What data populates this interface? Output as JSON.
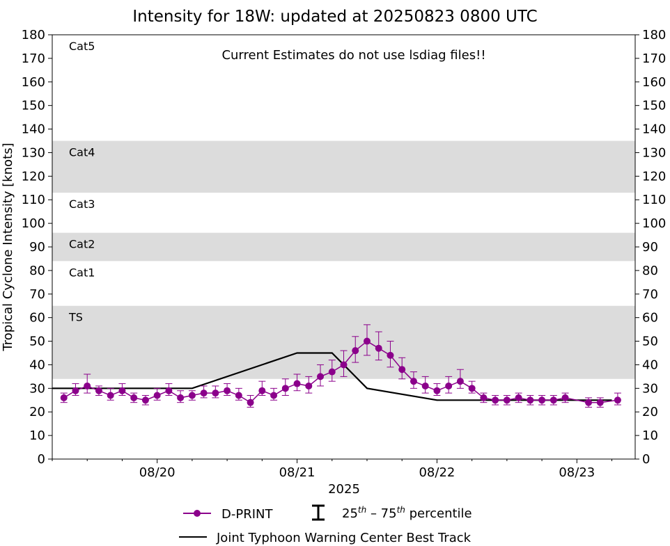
{
  "chart_data": {
    "type": "scatter",
    "title": "Intensity for 18W: updated at 20250823 0800 UTC",
    "ylabel": "Tropical Cyclone Intensity [knots]",
    "xlabel": "2025",
    "annotation": "Current Estimates do not use lsdiag files!!",
    "ylim": [
      0,
      180
    ],
    "xlim": [
      "2025-08-19 06:00",
      "2025-08-23 10:00"
    ],
    "y_ticks": [
      "0",
      "10",
      "20",
      "30",
      "40",
      "50",
      "60",
      "70",
      "80",
      "90",
      "100",
      "110",
      "120",
      "130",
      "140",
      "150",
      "160",
      "170",
      "180"
    ],
    "x_ticks": [
      "08/20",
      "08/21",
      "08/22",
      "08/23"
    ],
    "category_bands": [
      {
        "label": "Cat5",
        "from": 137,
        "to": 180,
        "shaded": false
      },
      {
        "label": "Cat4",
        "from": 113,
        "to": 135,
        "shaded": true
      },
      {
        "label": "Cat3",
        "from": 96,
        "to": 113,
        "shaded": false
      },
      {
        "label": "Cat2",
        "from": 84,
        "to": 96,
        "shaded": true
      },
      {
        "label": "Cat1",
        "from": 64,
        "to": 84,
        "shaded": false
      },
      {
        "label": "TS",
        "from": 34,
        "to": 65,
        "shaded": true
      }
    ],
    "colors": {
      "dprint": "#8b008b",
      "best_track": "#000000",
      "band": "#dcdcdc"
    },
    "legend": {
      "placement": "bottom",
      "dprint": "D-PRINT",
      "percentile_pre": "25",
      "percentile_mid": "th",
      "percentile_dash": " – 75",
      "percentile_sup2": "th",
      "percentile_post": " percentile",
      "best_track": "Joint Typhoon Warning Center Best Track"
    },
    "series": [
      {
        "name": "Joint Typhoon Warning Center Best Track",
        "x": [
          "2025-08-19 06:00",
          "2025-08-20 06:00",
          "2025-08-21 00:00",
          "2025-08-21 06:00",
          "2025-08-21 12:00",
          "2025-08-22 00:00",
          "2025-08-23 06:00"
        ],
        "y": [
          30,
          30,
          45,
          45,
          30,
          25,
          25
        ]
      },
      {
        "name": "D-PRINT",
        "x": [
          "2025-08-19 08:00",
          "2025-08-19 10:00",
          "2025-08-19 12:00",
          "2025-08-19 14:00",
          "2025-08-19 16:00",
          "2025-08-19 18:00",
          "2025-08-19 20:00",
          "2025-08-19 22:00",
          "2025-08-20 00:00",
          "2025-08-20 02:00",
          "2025-08-20 04:00",
          "2025-08-20 06:00",
          "2025-08-20 08:00",
          "2025-08-20 10:00",
          "2025-08-20 12:00",
          "2025-08-20 14:00",
          "2025-08-20 16:00",
          "2025-08-20 18:00",
          "2025-08-20 20:00",
          "2025-08-20 22:00",
          "2025-08-21 00:00",
          "2025-08-21 02:00",
          "2025-08-21 04:00",
          "2025-08-21 06:00",
          "2025-08-21 08:00",
          "2025-08-21 10:00",
          "2025-08-21 12:00",
          "2025-08-21 14:00",
          "2025-08-21 16:00",
          "2025-08-21 18:00",
          "2025-08-21 20:00",
          "2025-08-21 22:00",
          "2025-08-22 00:00",
          "2025-08-22 02:00",
          "2025-08-22 04:00",
          "2025-08-22 06:00",
          "2025-08-22 08:00",
          "2025-08-22 10:00",
          "2025-08-22 12:00",
          "2025-08-22 14:00",
          "2025-08-22 16:00",
          "2025-08-22 18:00",
          "2025-08-22 20:00",
          "2025-08-22 22:00",
          "2025-08-23 02:00",
          "2025-08-23 04:00",
          "2025-08-23 07:00"
        ],
        "y": [
          26,
          29,
          31,
          29,
          27,
          29,
          26,
          25,
          27,
          29,
          26,
          27,
          28,
          28,
          29,
          27,
          24,
          29,
          27,
          30,
          32,
          31,
          35,
          37,
          40,
          46,
          50,
          47,
          44,
          38,
          33,
          31,
          29,
          31,
          33,
          30,
          26,
          25,
          25,
          26,
          25,
          25,
          25,
          26,
          24,
          24,
          25
        ],
        "q25": [
          24,
          27,
          28,
          27,
          25,
          27,
          24,
          23,
          25,
          27,
          24,
          25,
          26,
          26,
          27,
          25,
          22,
          27,
          25,
          27,
          29,
          28,
          31,
          33,
          35,
          41,
          44,
          42,
          39,
          34,
          30,
          28,
          27,
          28,
          30,
          28,
          24,
          23,
          23,
          24,
          23,
          23,
          23,
          24,
          22,
          22,
          23
        ],
        "q75": [
          28,
          32,
          36,
          31,
          30,
          32,
          28,
          27,
          30,
          32,
          29,
          29,
          31,
          31,
          32,
          30,
          27,
          33,
          30,
          34,
          36,
          35,
          40,
          42,
          46,
          52,
          57,
          54,
          50,
          43,
          37,
          35,
          32,
          35,
          38,
          33,
          28,
          27,
          27,
          28,
          27,
          27,
          27,
          28,
          26,
          26,
          28
        ]
      }
    ]
  }
}
